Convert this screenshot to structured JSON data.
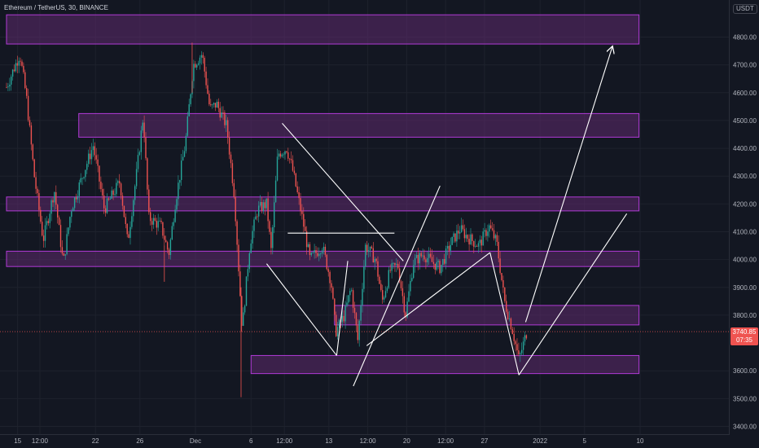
{
  "header": {
    "title": "Ethereum / TetherUS, 30, BINANCE",
    "currency": "USDT"
  },
  "price_tag": {
    "price": "3740.85",
    "countdown": "07:35"
  },
  "colors": {
    "background": "#131722",
    "zone_fill": "#5e2a6e",
    "zone_border": "#b03ad6",
    "candle_up": "#26a69a",
    "candle_down": "#ef5350",
    "drawing_line": "#ffffff",
    "current_price_line": "#ef5350",
    "axis_text": "#b2b5be"
  },
  "chart_data": {
    "type": "candlestick",
    "symbol": "Ethereum / TetherUS",
    "interval": "30",
    "exchange": "BINANCE",
    "y_axis": {
      "min": 3400,
      "max": 4900,
      "ticks": [
        4800,
        4700,
        4600,
        4500,
        4400,
        4300,
        4200,
        4100,
        4000,
        3900,
        3800,
        3600,
        3500,
        3400
      ],
      "tick_labels": [
        "4800.00",
        "4700.00",
        "4600.00",
        "4500.00",
        "4400.00",
        "4300.00",
        "4200.00",
        "4100.00",
        "4000.00",
        "3900.00",
        "3800.00",
        "3600.00",
        "3500.00",
        "3400.00"
      ]
    },
    "x_axis": {
      "labels": [
        {
          "day": 15,
          "label": "15"
        },
        {
          "day": 17,
          "label": "12:00"
        },
        {
          "day": 22,
          "label": "22"
        },
        {
          "day": 26,
          "label": "26"
        },
        {
          "day": 31,
          "label": "Dec"
        },
        {
          "day": 36,
          "label": "6"
        },
        {
          "day": 39,
          "label": "12:00"
        },
        {
          "day": 43,
          "label": "13"
        },
        {
          "day": 46.5,
          "label": "12:00"
        },
        {
          "day": 50,
          "label": "20"
        },
        {
          "day": 53.5,
          "label": "12:00"
        },
        {
          "day": 57,
          "label": "27"
        },
        {
          "day": 62,
          "label": "2022"
        },
        {
          "day": 66,
          "label": "5"
        },
        {
          "day": 71,
          "label": "10"
        }
      ]
    },
    "zones": [
      {
        "from_day": 14,
        "to_day": 70.9,
        "top": 4880,
        "bottom": 4775
      },
      {
        "from_day": 20.5,
        "to_day": 70.9,
        "top": 4525,
        "bottom": 4440
      },
      {
        "from_day": 14,
        "to_day": 70.9,
        "top": 4225,
        "bottom": 4175
      },
      {
        "from_day": 14,
        "to_day": 70.9,
        "top": 4030,
        "bottom": 3975
      },
      {
        "from_day": 43.5,
        "to_day": 70.9,
        "top": 3835,
        "bottom": 3765
      },
      {
        "from_day": 36,
        "to_day": 70.9,
        "top": 3655,
        "bottom": 3590
      }
    ],
    "price_path": [
      {
        "day": 14,
        "price": 4620
      },
      {
        "day": 15.2,
        "price": 4740
      },
      {
        "day": 15.8,
        "price": 4580
      },
      {
        "day": 16.5,
        "price": 4300
      },
      {
        "day": 17.3,
        "price": 4070
      },
      {
        "day": 18.3,
        "price": 4250
      },
      {
        "day": 19.1,
        "price": 3985
      },
      {
        "day": 19.8,
        "price": 4180
      },
      {
        "day": 21,
        "price": 4320
      },
      {
        "day": 21.8,
        "price": 4410
      },
      {
        "day": 22.8,
        "price": 4180
      },
      {
        "day": 24.2,
        "price": 4280
      },
      {
        "day": 24.9,
        "price": 4060
      },
      {
        "day": 25.7,
        "price": 4310
      },
      {
        "day": 26.3,
        "price": 4520
      },
      {
        "day": 26.8,
        "price": 4150
      },
      {
        "day": 27.9,
        "price": 4120
      },
      {
        "day": 28.6,
        "price": 4020
      },
      {
        "day": 29.2,
        "price": 4210
      },
      {
        "day": 30.1,
        "price": 4420
      },
      {
        "day": 30.8,
        "price": 4700
      },
      {
        "day": 31.6,
        "price": 4740
      },
      {
        "day": 32.3,
        "price": 4540
      },
      {
        "day": 32.9,
        "price": 4560
      },
      {
        "day": 33.8,
        "price": 4480
      },
      {
        "day": 34.5,
        "price": 4230
      },
      {
        "day": 35.2,
        "price": 3750
      },
      {
        "day": 35.9,
        "price": 4060
      },
      {
        "day": 36.6,
        "price": 4180
      },
      {
        "day": 37.4,
        "price": 4200
      },
      {
        "day": 37.8,
        "price": 4030
      },
      {
        "day": 38.4,
        "price": 4380
      },
      {
        "day": 39.2,
        "price": 4400
      },
      {
        "day": 39.7,
        "price": 4330
      },
      {
        "day": 40.6,
        "price": 4150
      },
      {
        "day": 41.3,
        "price": 4000
      },
      {
        "day": 42.4,
        "price": 4050
      },
      {
        "day": 43.2,
        "price": 3920
      },
      {
        "day": 43.6,
        "price": 3740
      },
      {
        "day": 44.4,
        "price": 3800
      },
      {
        "day": 45,
        "price": 3900
      },
      {
        "day": 45.6,
        "price": 3710
      },
      {
        "day": 46.3,
        "price": 4050
      },
      {
        "day": 47.2,
        "price": 4000
      },
      {
        "day": 47.8,
        "price": 3850
      },
      {
        "day": 48.5,
        "price": 3960
      },
      {
        "day": 49.2,
        "price": 3980
      },
      {
        "day": 49.9,
        "price": 3800
      },
      {
        "day": 50.6,
        "price": 3990
      },
      {
        "day": 51.5,
        "price": 4020
      },
      {
        "day": 52.3,
        "price": 3990
      },
      {
        "day": 53,
        "price": 3970
      },
      {
        "day": 54,
        "price": 4060
      },
      {
        "day": 54.8,
        "price": 4110
      },
      {
        "day": 55.5,
        "price": 4080
      },
      {
        "day": 56.5,
        "price": 4050
      },
      {
        "day": 57.4,
        "price": 4120
      },
      {
        "day": 58.1,
        "price": 4060
      },
      {
        "day": 58.8,
        "price": 3850
      },
      {
        "day": 59.5,
        "price": 3750
      },
      {
        "day": 60.1,
        "price": 3640
      },
      {
        "day": 60.8,
        "price": 3740
      }
    ],
    "drawings": [
      {
        "type": "line",
        "from": {
          "day": 38.8,
          "price": 4490
        },
        "to": {
          "day": 49.7,
          "price": 3995
        }
      },
      {
        "type": "line",
        "from": {
          "day": 39.3,
          "price": 4095
        },
        "to": {
          "day": 48.9,
          "price": 4095
        }
      },
      {
        "type": "line",
        "from": {
          "day": 37.4,
          "price": 3985
        },
        "to": {
          "day": 43.7,
          "price": 3655
        }
      },
      {
        "type": "line",
        "from": {
          "day": 43.7,
          "price": 3655
        },
        "to": {
          "day": 44.7,
          "price": 3995
        }
      },
      {
        "type": "line",
        "from": {
          "day": 45.2,
          "price": 3545
        },
        "to": {
          "day": 53,
          "price": 4265
        }
      },
      {
        "type": "line",
        "from": {
          "day": 46.4,
          "price": 3690
        },
        "to": {
          "day": 57.5,
          "price": 4025
        }
      },
      {
        "type": "line",
        "from": {
          "day": 57.5,
          "price": 4025
        },
        "to": {
          "day": 60.1,
          "price": 3585
        }
      },
      {
        "type": "line",
        "from": {
          "day": 60.1,
          "price": 3585
        },
        "to": {
          "day": 69.8,
          "price": 4165
        }
      },
      {
        "type": "arrow",
        "from": {
          "day": 60.7,
          "price": 3775
        },
        "to": {
          "day": 68.5,
          "price": 4765
        }
      }
    ],
    "current_price": 3740.85
  }
}
